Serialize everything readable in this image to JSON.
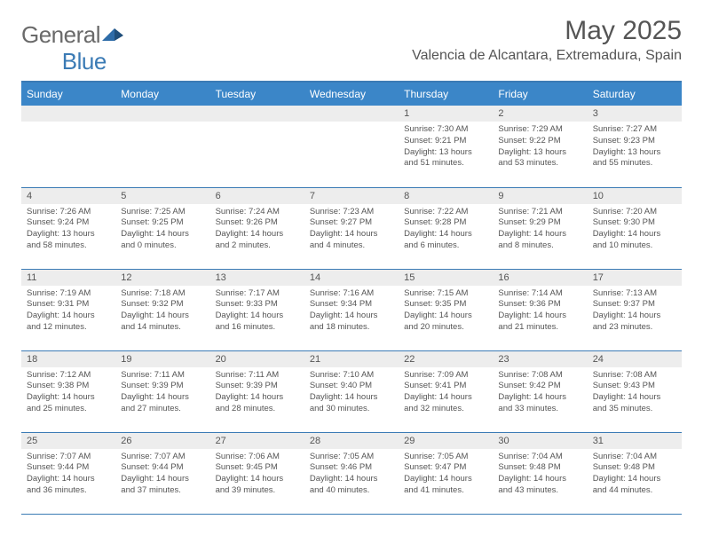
{
  "logo": {
    "text1": "General",
    "text2": "Blue"
  },
  "title": "May 2025",
  "location": "Valencia de Alcantara, Extremadura, Spain",
  "colors": {
    "header_bg": "#3b86c8",
    "border": "#3b7bb5",
    "daynum_bg": "#ededed",
    "text": "#555555",
    "logo_gray": "#6a6a6a",
    "logo_blue": "#3b7bb5"
  },
  "weekdays": [
    "Sunday",
    "Monday",
    "Tuesday",
    "Wednesday",
    "Thursday",
    "Friday",
    "Saturday"
  ],
  "weeks": [
    [
      null,
      null,
      null,
      null,
      {
        "n": "1",
        "sunrise": "7:30 AM",
        "sunset": "9:21 PM",
        "d1": "Daylight: 13 hours",
        "d2": "and 51 minutes."
      },
      {
        "n": "2",
        "sunrise": "7:29 AM",
        "sunset": "9:22 PM",
        "d1": "Daylight: 13 hours",
        "d2": "and 53 minutes."
      },
      {
        "n": "3",
        "sunrise": "7:27 AM",
        "sunset": "9:23 PM",
        "d1": "Daylight: 13 hours",
        "d2": "and 55 minutes."
      }
    ],
    [
      {
        "n": "4",
        "sunrise": "7:26 AM",
        "sunset": "9:24 PM",
        "d1": "Daylight: 13 hours",
        "d2": "and 58 minutes."
      },
      {
        "n": "5",
        "sunrise": "7:25 AM",
        "sunset": "9:25 PM",
        "d1": "Daylight: 14 hours",
        "d2": "and 0 minutes."
      },
      {
        "n": "6",
        "sunrise": "7:24 AM",
        "sunset": "9:26 PM",
        "d1": "Daylight: 14 hours",
        "d2": "and 2 minutes."
      },
      {
        "n": "7",
        "sunrise": "7:23 AM",
        "sunset": "9:27 PM",
        "d1": "Daylight: 14 hours",
        "d2": "and 4 minutes."
      },
      {
        "n": "8",
        "sunrise": "7:22 AM",
        "sunset": "9:28 PM",
        "d1": "Daylight: 14 hours",
        "d2": "and 6 minutes."
      },
      {
        "n": "9",
        "sunrise": "7:21 AM",
        "sunset": "9:29 PM",
        "d1": "Daylight: 14 hours",
        "d2": "and 8 minutes."
      },
      {
        "n": "10",
        "sunrise": "7:20 AM",
        "sunset": "9:30 PM",
        "d1": "Daylight: 14 hours",
        "d2": "and 10 minutes."
      }
    ],
    [
      {
        "n": "11",
        "sunrise": "7:19 AM",
        "sunset": "9:31 PM",
        "d1": "Daylight: 14 hours",
        "d2": "and 12 minutes."
      },
      {
        "n": "12",
        "sunrise": "7:18 AM",
        "sunset": "9:32 PM",
        "d1": "Daylight: 14 hours",
        "d2": "and 14 minutes."
      },
      {
        "n": "13",
        "sunrise": "7:17 AM",
        "sunset": "9:33 PM",
        "d1": "Daylight: 14 hours",
        "d2": "and 16 minutes."
      },
      {
        "n": "14",
        "sunrise": "7:16 AM",
        "sunset": "9:34 PM",
        "d1": "Daylight: 14 hours",
        "d2": "and 18 minutes."
      },
      {
        "n": "15",
        "sunrise": "7:15 AM",
        "sunset": "9:35 PM",
        "d1": "Daylight: 14 hours",
        "d2": "and 20 minutes."
      },
      {
        "n": "16",
        "sunrise": "7:14 AM",
        "sunset": "9:36 PM",
        "d1": "Daylight: 14 hours",
        "d2": "and 21 minutes."
      },
      {
        "n": "17",
        "sunrise": "7:13 AM",
        "sunset": "9:37 PM",
        "d1": "Daylight: 14 hours",
        "d2": "and 23 minutes."
      }
    ],
    [
      {
        "n": "18",
        "sunrise": "7:12 AM",
        "sunset": "9:38 PM",
        "d1": "Daylight: 14 hours",
        "d2": "and 25 minutes."
      },
      {
        "n": "19",
        "sunrise": "7:11 AM",
        "sunset": "9:39 PM",
        "d1": "Daylight: 14 hours",
        "d2": "and 27 minutes."
      },
      {
        "n": "20",
        "sunrise": "7:11 AM",
        "sunset": "9:39 PM",
        "d1": "Daylight: 14 hours",
        "d2": "and 28 minutes."
      },
      {
        "n": "21",
        "sunrise": "7:10 AM",
        "sunset": "9:40 PM",
        "d1": "Daylight: 14 hours",
        "d2": "and 30 minutes."
      },
      {
        "n": "22",
        "sunrise": "7:09 AM",
        "sunset": "9:41 PM",
        "d1": "Daylight: 14 hours",
        "d2": "and 32 minutes."
      },
      {
        "n": "23",
        "sunrise": "7:08 AM",
        "sunset": "9:42 PM",
        "d1": "Daylight: 14 hours",
        "d2": "and 33 minutes."
      },
      {
        "n": "24",
        "sunrise": "7:08 AM",
        "sunset": "9:43 PM",
        "d1": "Daylight: 14 hours",
        "d2": "and 35 minutes."
      }
    ],
    [
      {
        "n": "25",
        "sunrise": "7:07 AM",
        "sunset": "9:44 PM",
        "d1": "Daylight: 14 hours",
        "d2": "and 36 minutes."
      },
      {
        "n": "26",
        "sunrise": "7:07 AM",
        "sunset": "9:44 PM",
        "d1": "Daylight: 14 hours",
        "d2": "and 37 minutes."
      },
      {
        "n": "27",
        "sunrise": "7:06 AM",
        "sunset": "9:45 PM",
        "d1": "Daylight: 14 hours",
        "d2": "and 39 minutes."
      },
      {
        "n": "28",
        "sunrise": "7:05 AM",
        "sunset": "9:46 PM",
        "d1": "Daylight: 14 hours",
        "d2": "and 40 minutes."
      },
      {
        "n": "29",
        "sunrise": "7:05 AM",
        "sunset": "9:47 PM",
        "d1": "Daylight: 14 hours",
        "d2": "and 41 minutes."
      },
      {
        "n": "30",
        "sunrise": "7:04 AM",
        "sunset": "9:48 PM",
        "d1": "Daylight: 14 hours",
        "d2": "and 43 minutes."
      },
      {
        "n": "31",
        "sunrise": "7:04 AM",
        "sunset": "9:48 PM",
        "d1": "Daylight: 14 hours",
        "d2": "and 44 minutes."
      }
    ]
  ],
  "labels": {
    "sunrise": "Sunrise: ",
    "sunset": "Sunset: "
  }
}
